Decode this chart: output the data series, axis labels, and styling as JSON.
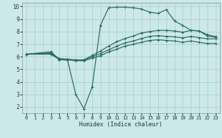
{
  "xlabel": "Humidex (Indice chaleur)",
  "bg_color": "#cce8e8",
  "grid_color": "#aecfcf",
  "line_color": "#2a6b5e",
  "xlim": [
    -0.5,
    23.5
  ],
  "ylim": [
    1.5,
    10.3
  ],
  "xtick_labels": [
    "0",
    "1",
    "2",
    "3",
    "4",
    "5",
    "6",
    "7",
    "8",
    "9",
    "10",
    "11",
    "12",
    "13",
    "14",
    "15",
    "16",
    "17",
    "18",
    "19",
    "20",
    "21",
    "22",
    "23"
  ],
  "ytick_values": [
    2,
    3,
    4,
    5,
    6,
    7,
    8,
    9,
    10
  ],
  "line1": {
    "x": [
      0,
      3,
      4,
      5,
      6,
      7,
      8,
      9,
      10,
      11,
      12,
      13,
      14,
      15,
      16,
      17,
      18,
      19,
      20,
      21,
      22,
      23
    ],
    "y": [
      6.2,
      6.4,
      5.75,
      5.75,
      3.0,
      1.85,
      3.6,
      8.5,
      9.9,
      9.95,
      9.95,
      9.9,
      9.8,
      9.55,
      9.45,
      9.75,
      8.85,
      8.5,
      8.1,
      8.05,
      7.65,
      7.55
    ]
  },
  "line2": {
    "x": [
      0,
      3,
      4,
      5,
      6,
      7,
      8,
      9,
      10,
      11,
      12,
      13,
      14,
      15,
      16,
      17,
      18,
      19,
      20,
      21,
      22,
      23
    ],
    "y": [
      6.2,
      6.3,
      5.85,
      5.8,
      5.75,
      5.75,
      6.1,
      6.45,
      6.85,
      7.2,
      7.45,
      7.65,
      7.9,
      8.0,
      8.1,
      8.1,
      8.05,
      7.95,
      8.1,
      8.05,
      7.75,
      7.6
    ]
  },
  "line3": {
    "x": [
      0,
      3,
      4,
      5,
      6,
      7,
      8,
      9,
      10,
      11,
      12,
      13,
      14,
      15,
      16,
      17,
      18,
      19,
      20,
      21,
      22,
      23
    ],
    "y": [
      6.2,
      6.25,
      5.82,
      5.78,
      5.72,
      5.72,
      6.0,
      6.25,
      6.55,
      6.85,
      7.1,
      7.25,
      7.45,
      7.62,
      7.68,
      7.62,
      7.58,
      7.5,
      7.62,
      7.52,
      7.42,
      7.42
    ]
  },
  "line4": {
    "x": [
      0,
      3,
      4,
      5,
      6,
      7,
      8,
      9,
      10,
      11,
      12,
      13,
      14,
      15,
      16,
      17,
      18,
      19,
      20,
      21,
      22,
      23
    ],
    "y": [
      6.2,
      6.2,
      5.78,
      5.75,
      5.68,
      5.68,
      5.88,
      6.08,
      6.38,
      6.6,
      6.85,
      7.0,
      7.15,
      7.3,
      7.35,
      7.3,
      7.25,
      7.15,
      7.25,
      7.15,
      7.05,
      7.05
    ]
  }
}
